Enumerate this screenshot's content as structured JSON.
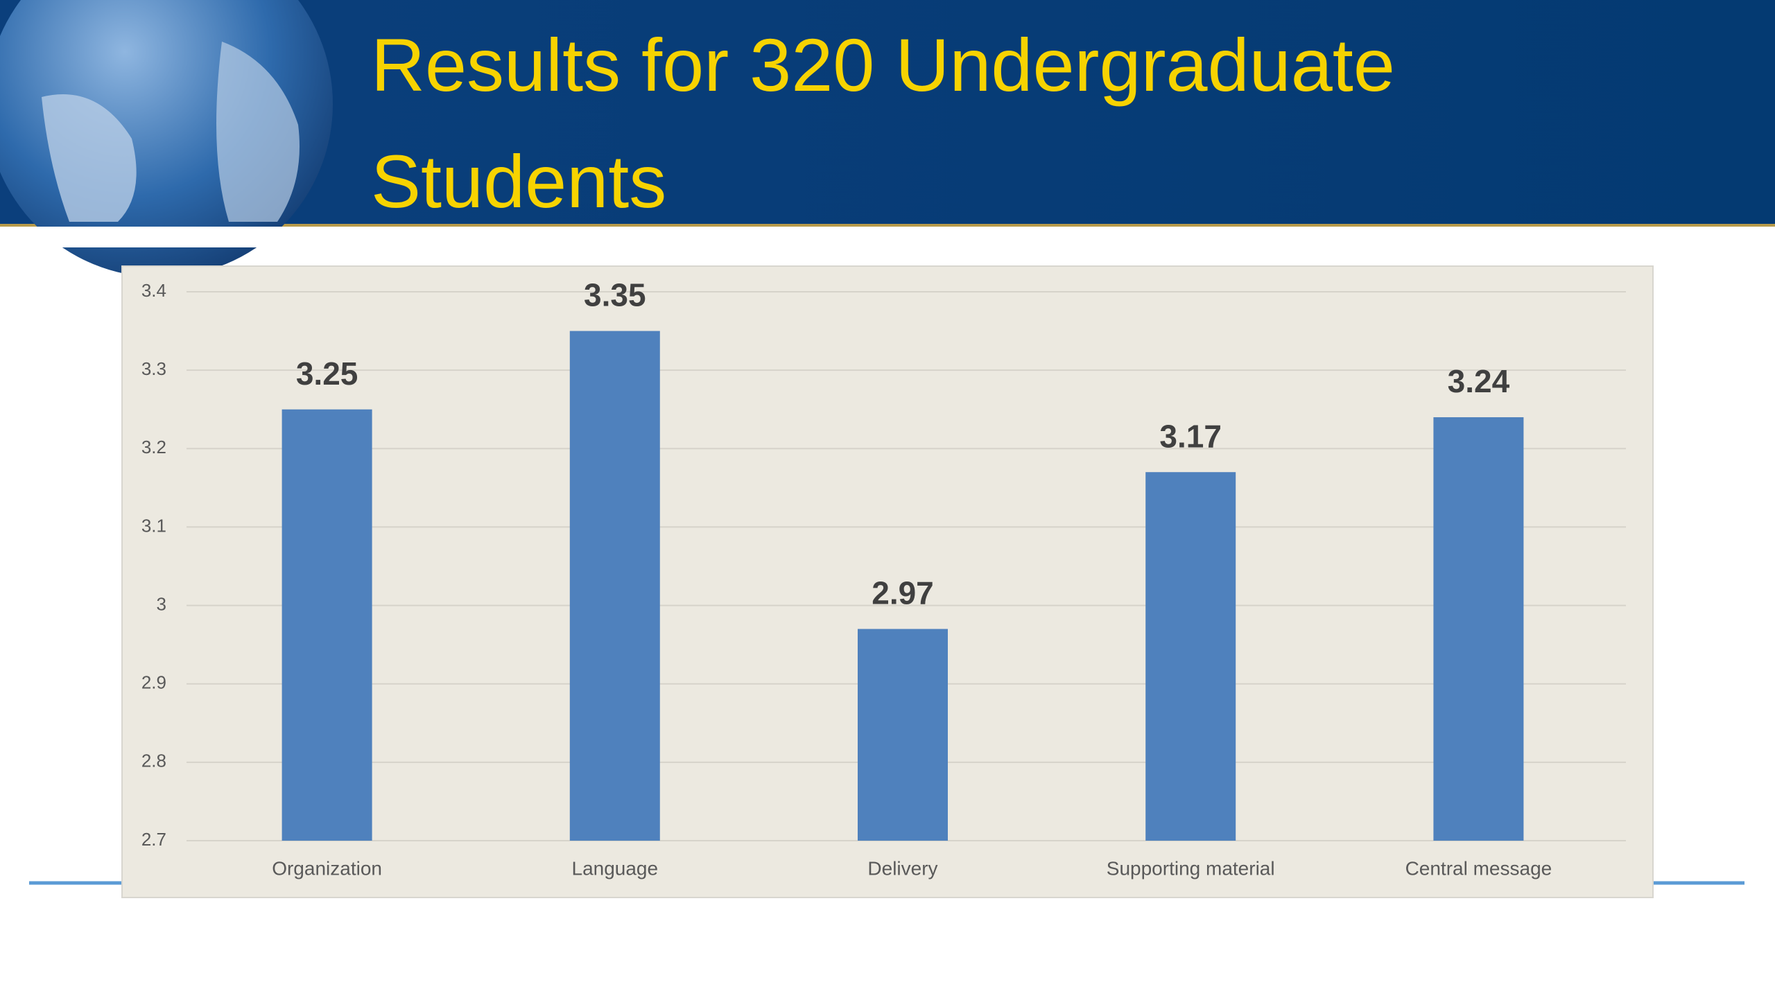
{
  "chart_data": {
    "type": "bar",
    "title": "Results for 320 Undergraduate Students",
    "categories": [
      "Organization",
      "Language",
      "Delivery",
      "Supporting material",
      "Central message"
    ],
    "values": [
      3.25,
      3.35,
      2.97,
      3.17,
      3.24
    ],
    "color": "#4f81bd",
    "ylim": [
      2.7,
      3.4
    ],
    "yticks": [
      2.7,
      2.8,
      2.9,
      3,
      3.1,
      3.2,
      3.3,
      3.4
    ],
    "grid": true
  }
}
